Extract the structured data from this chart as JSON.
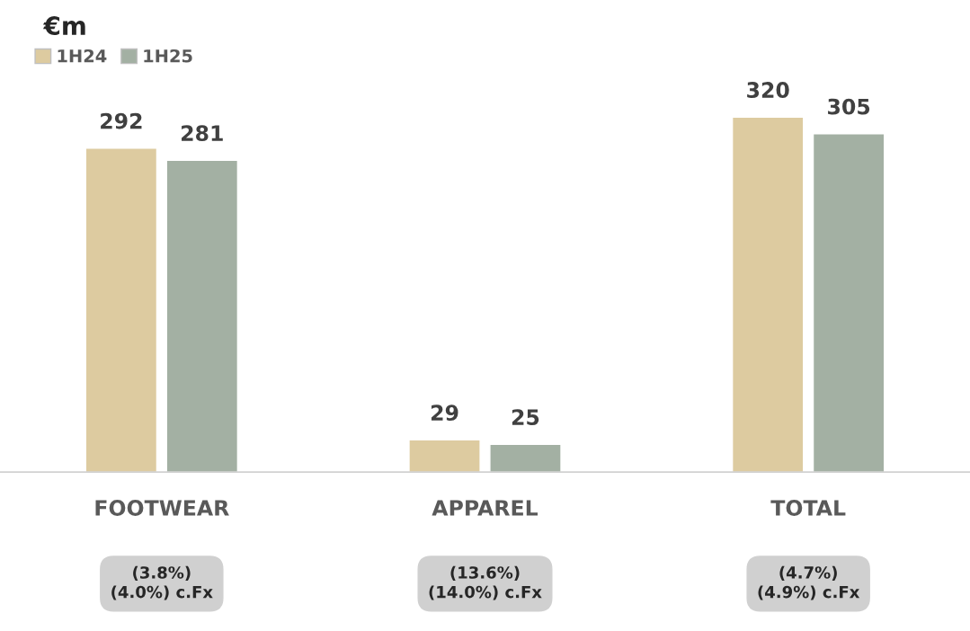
{
  "chart_data": {
    "type": "bar",
    "title": "€m",
    "categories": [
      "FOOTWEAR",
      "APPAREL",
      "TOTAL"
    ],
    "series": [
      {
        "name": "1H24",
        "color": "#ddcba0",
        "values": [
          292,
          29,
          320
        ]
      },
      {
        "name": "1H25",
        "color": "#a3b0a3",
        "values": [
          281,
          25,
          305
        ]
      }
    ],
    "data_labels": true,
    "legend": "top left",
    "grid": false,
    "annotations": [
      "(3.8%)\n(4.0%) c.Fx",
      "(13.6%)\n(14.0%) c.Fx",
      "(4.7%)\n(4.9%) c.Fx"
    ]
  }
}
